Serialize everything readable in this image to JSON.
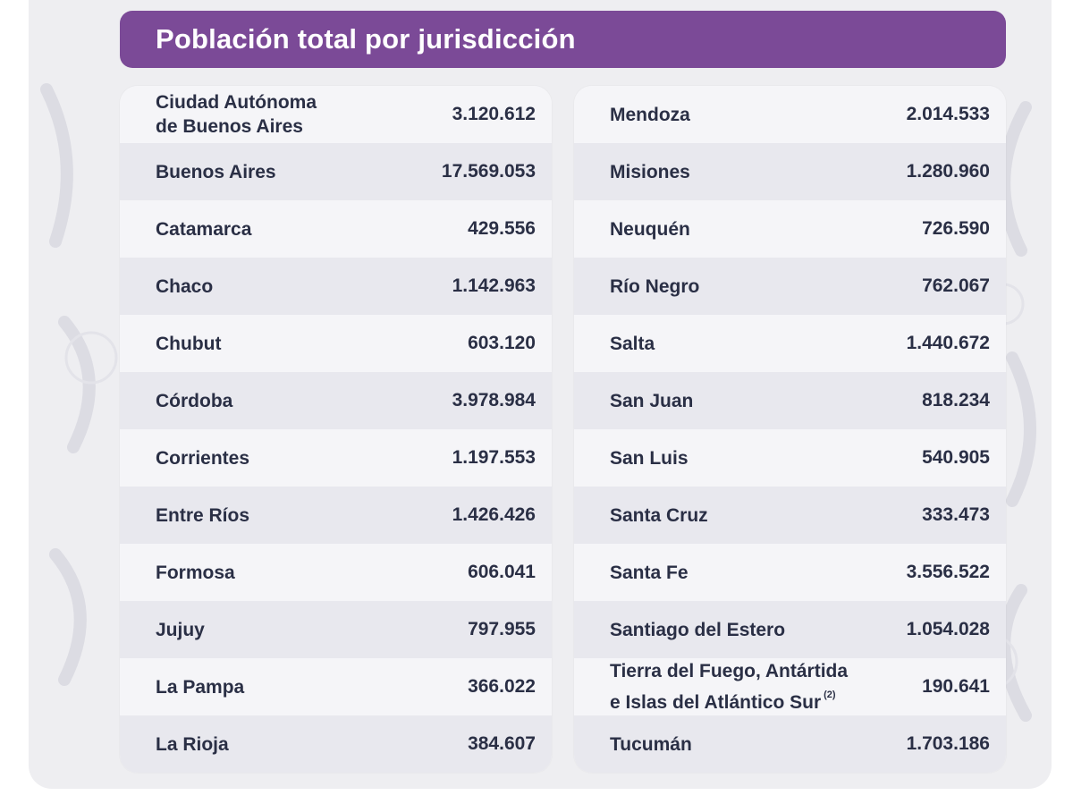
{
  "title": "Población total por jurisdicción",
  "left_rows": [
    {
      "name_line1": "Ciudad Autónoma",
      "name_line2": "de Buenos Aires",
      "value": "3.120.612"
    },
    {
      "name_line1": "Buenos Aires",
      "name_line2": "",
      "value": "17.569.053"
    },
    {
      "name_line1": "Catamarca",
      "name_line2": "",
      "value": "429.556"
    },
    {
      "name_line1": "Chaco",
      "name_line2": "",
      "value": "1.142.963"
    },
    {
      "name_line1": "Chubut",
      "name_line2": "",
      "value": "603.120"
    },
    {
      "name_line1": "Córdoba",
      "name_line2": "",
      "value": "3.978.984"
    },
    {
      "name_line1": "Corrientes",
      "name_line2": "",
      "value": "1.197.553"
    },
    {
      "name_line1": "Entre Ríos",
      "name_line2": "",
      "value": "1.426.426"
    },
    {
      "name_line1": "Formosa",
      "name_line2": "",
      "value": "606.041"
    },
    {
      "name_line1": "Jujuy",
      "name_line2": "",
      "value": "797.955"
    },
    {
      "name_line1": "La Pampa",
      "name_line2": "",
      "value": "366.022"
    },
    {
      "name_line1": "La Rioja",
      "name_line2": "",
      "value": "384.607"
    }
  ],
  "right_rows": [
    {
      "name_line1": "Mendoza",
      "name_line2": "",
      "value": "2.014.533"
    },
    {
      "name_line1": "Misiones",
      "name_line2": "",
      "value": "1.280.960"
    },
    {
      "name_line1": "Neuquén",
      "name_line2": "",
      "value": "726.590"
    },
    {
      "name_line1": "Río Negro",
      "name_line2": "",
      "value": "762.067"
    },
    {
      "name_line1": "Salta",
      "name_line2": "",
      "value": "1.440.672"
    },
    {
      "name_line1": "San Juan",
      "name_line2": "",
      "value": "818.234"
    },
    {
      "name_line1": "San Luis",
      "name_line2": "",
      "value": "540.905"
    },
    {
      "name_line1": "Santa Cruz",
      "name_line2": "",
      "value": "333.473"
    },
    {
      "name_line1": "Santa Fe",
      "name_line2": "",
      "value": "3.556.522"
    },
    {
      "name_line1": "Santiago del Estero",
      "name_line2": "",
      "value": "1.054.028"
    },
    {
      "name_line1": "Tierra del Fuego, Antártida",
      "name_line2": "e Islas del Atlántico Sur",
      "footnote": "(2)",
      "value": "190.641"
    },
    {
      "name_line1": "Tucumán",
      "name_line2": "",
      "value": "1.703.186"
    }
  ],
  "colors": {
    "header_bg": "#7b4a97",
    "header_text": "#ffffff",
    "row_text": "#2a2f45",
    "row_light": "#f5f5f8",
    "row_dark": "#e8e8ee",
    "card_bg": "#eeeef1"
  }
}
